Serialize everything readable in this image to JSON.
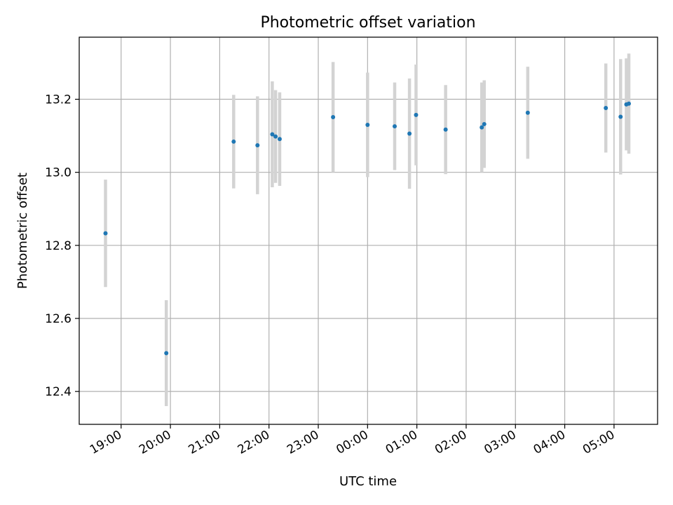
{
  "chart_data": {
    "type": "scatter",
    "title": "Photometric offset variation",
    "xlabel": "UTC time",
    "ylabel": "Photometric offset",
    "x_tick_labels": [
      "19:00",
      "20:00",
      "21:00",
      "22:00",
      "23:00",
      "00:00",
      "01:00",
      "02:00",
      "03:00",
      "04:00",
      "05:00"
    ],
    "x_tick_times": [
      "19:00",
      "20:00",
      "21:00",
      "22:00",
      "23:00",
      "00:00",
      "01:00",
      "02:00",
      "03:00",
      "04:00",
      "05:00"
    ],
    "xlim": [
      "18:09",
      "05:53"
    ],
    "y_ticks": [
      12.4,
      12.6,
      12.8,
      13.0,
      13.2
    ],
    "y_tick_labels": [
      "12.4",
      "12.6",
      "12.8",
      "13.0",
      "13.2"
    ],
    "ylim": [
      12.31,
      13.37
    ],
    "grid": true,
    "point_color": "#1f77b4",
    "errorbar_color": "#d3d3d3",
    "points": [
      {
        "x": "18:41",
        "y": 12.833,
        "err": 0.147
      },
      {
        "x": "19:55",
        "y": 12.505,
        "err": 0.145
      },
      {
        "x": "21:17",
        "y": 13.084,
        "err": 0.128
      },
      {
        "x": "21:46",
        "y": 13.074,
        "err": 0.134
      },
      {
        "x": "22:04",
        "y": 13.104,
        "err": 0.145
      },
      {
        "x": "22:08",
        "y": 13.098,
        "err": 0.127
      },
      {
        "x": "22:13",
        "y": 13.091,
        "err": 0.128
      },
      {
        "x": "23:18",
        "y": 13.151,
        "err": 0.151
      },
      {
        "x": "00:00",
        "y": 13.13,
        "err": 0.143
      },
      {
        "x": "00:33",
        "y": 13.126,
        "err": 0.12
      },
      {
        "x": "00:51",
        "y": 13.106,
        "err": 0.151
      },
      {
        "x": "00:59",
        "y": 13.157,
        "err": 0.138
      },
      {
        "x": "01:35",
        "y": 13.117,
        "err": 0.122
      },
      {
        "x": "02:19",
        "y": 13.123,
        "err": 0.123
      },
      {
        "x": "02:22",
        "y": 13.132,
        "err": 0.12
      },
      {
        "x": "03:15",
        "y": 13.163,
        "err": 0.126
      },
      {
        "x": "04:50",
        "y": 13.176,
        "err": 0.122
      },
      {
        "x": "05:08",
        "y": 13.152,
        "err": 0.158
      },
      {
        "x": "05:15",
        "y": 13.186,
        "err": 0.126
      },
      {
        "x": "05:18",
        "y": 13.188,
        "err": 0.137
      }
    ]
  }
}
